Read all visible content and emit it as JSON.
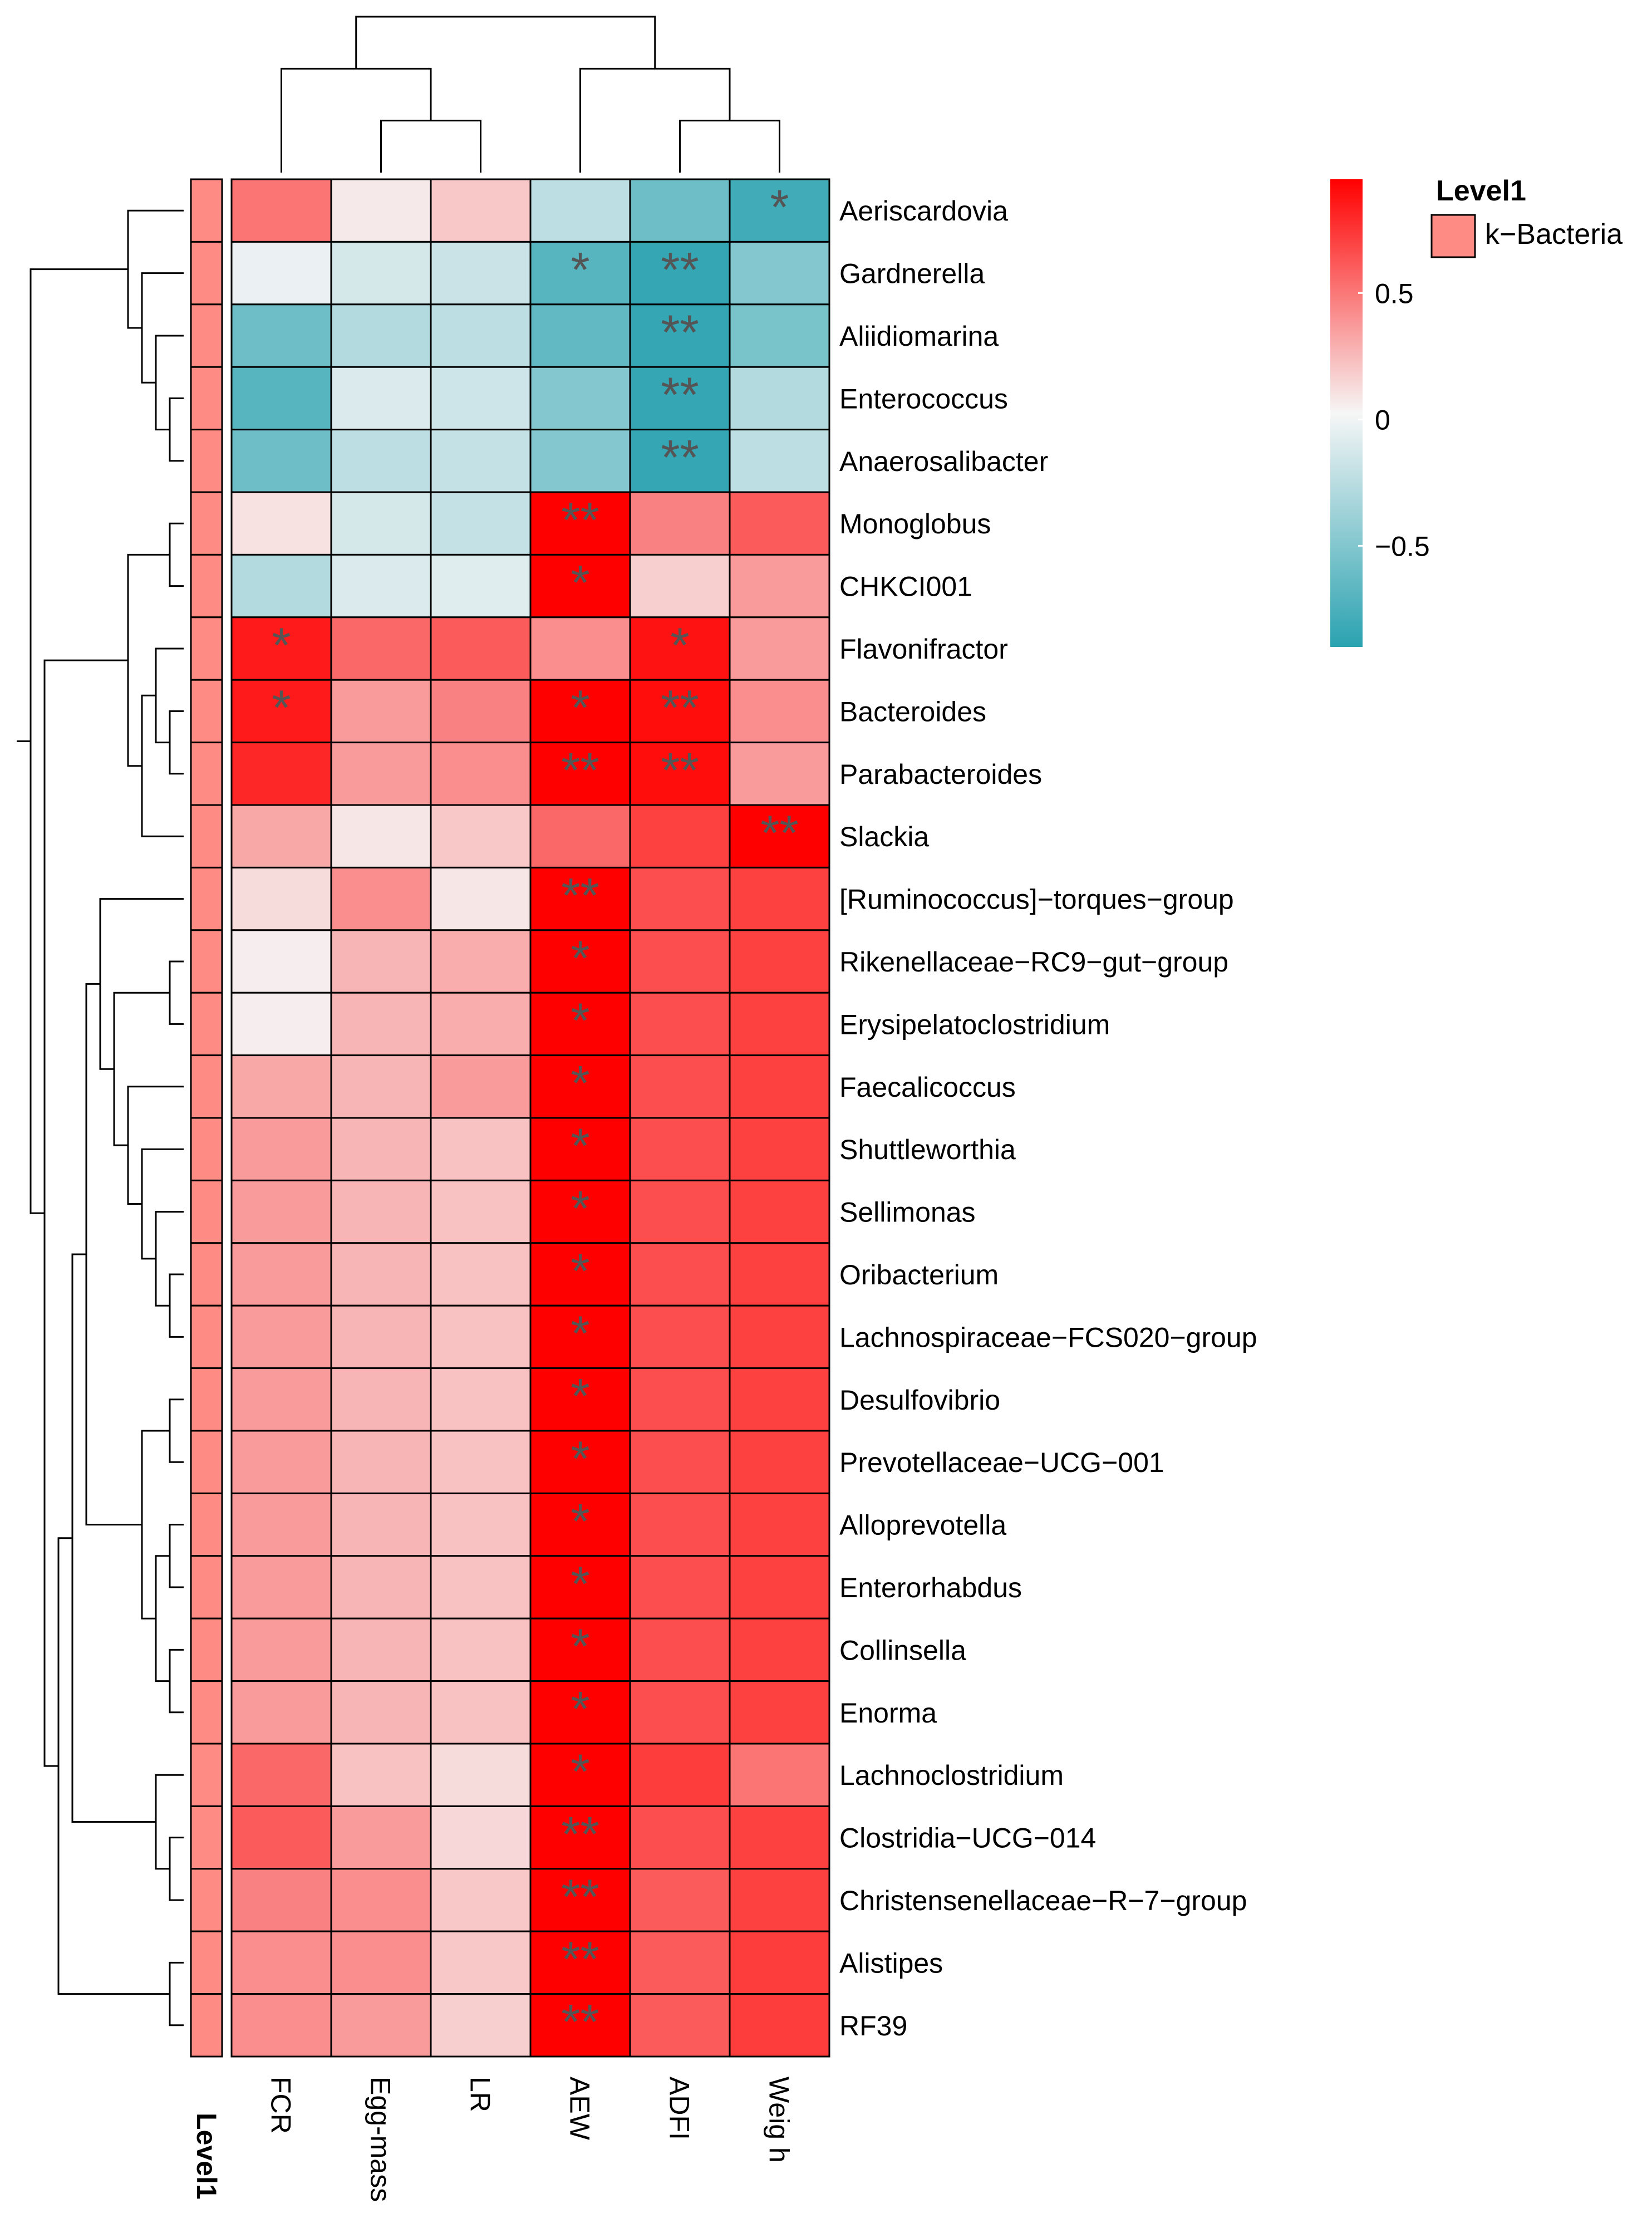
{
  "chart_data": {
    "type": "heatmap",
    "title": "",
    "columns": [
      "FCR",
      "Egg-mass",
      "LR",
      "AEW",
      "ADFI",
      "Weig h"
    ],
    "rows": [
      "Aeriscardovia",
      "Gardnerella",
      "Aliidiomarina",
      "Enterococcus",
      "Anaerosalibacter",
      "Monoglobus",
      "CHKCI001",
      "Flavonifractor",
      "Bacteroides",
      "Parabacteroides",
      "Slackia",
      "[Ruminococcus]−torques−group",
      "Rikenellaceae−RC9−gut−group",
      "Erysipelatoclostridium",
      "Faecalicoccus",
      "Shuttleworthia",
      "Sellimonas",
      "Oribacterium",
      "Lachnospiraceae−FCS020−group",
      "Desulfovibrio",
      "Prevotellaceae−UCG−001",
      "Alloprevotella",
      "Enterorhabdus",
      "Collinsella",
      "Enorma",
      "Lachnoclostridium",
      "Clostridia−UCG−014",
      "Christensenellaceae−R−7−group",
      "Alistipes",
      "RF39"
    ],
    "values": [
      [
        0.5,
        0.05,
        0.18,
        -0.25,
        -0.6,
        -0.8
      ],
      [
        -0.05,
        -0.15,
        -0.2,
        -0.7,
        -0.85,
        -0.5
      ],
      [
        -0.6,
        -0.3,
        -0.25,
        -0.65,
        -0.85,
        -0.55
      ],
      [
        -0.7,
        -0.12,
        -0.18,
        -0.5,
        -0.85,
        -0.3
      ],
      [
        -0.6,
        -0.25,
        -0.22,
        -0.5,
        -0.85,
        -0.25
      ],
      [
        0.08,
        -0.15,
        -0.22,
        0.95,
        0.45,
        0.6
      ],
      [
        -0.3,
        -0.12,
        -0.1,
        0.95,
        0.15,
        0.35
      ],
      [
        0.85,
        0.55,
        0.6,
        0.4,
        0.88,
        0.35
      ],
      [
        0.85,
        0.35,
        0.45,
        0.95,
        0.9,
        0.4
      ],
      [
        0.8,
        0.35,
        0.4,
        0.95,
        0.9,
        0.35
      ],
      [
        0.3,
        0.06,
        0.18,
        0.55,
        0.7,
        0.98
      ],
      [
        0.1,
        0.4,
        0.06,
        0.95,
        0.65,
        0.7
      ],
      [
        0.03,
        0.25,
        0.28,
        0.95,
        0.65,
        0.7
      ],
      [
        0.03,
        0.25,
        0.28,
        0.95,
        0.65,
        0.7
      ],
      [
        0.3,
        0.25,
        0.35,
        0.95,
        0.65,
        0.7
      ],
      [
        0.35,
        0.25,
        0.2,
        0.95,
        0.65,
        0.7
      ],
      [
        0.35,
        0.25,
        0.2,
        0.95,
        0.65,
        0.7
      ],
      [
        0.35,
        0.25,
        0.2,
        0.95,
        0.65,
        0.7
      ],
      [
        0.35,
        0.25,
        0.2,
        0.95,
        0.65,
        0.7
      ],
      [
        0.35,
        0.25,
        0.2,
        0.95,
        0.65,
        0.7
      ],
      [
        0.35,
        0.25,
        0.2,
        0.95,
        0.65,
        0.7
      ],
      [
        0.35,
        0.25,
        0.2,
        0.95,
        0.65,
        0.7
      ],
      [
        0.35,
        0.25,
        0.2,
        0.95,
        0.65,
        0.7
      ],
      [
        0.35,
        0.25,
        0.2,
        0.95,
        0.65,
        0.7
      ],
      [
        0.35,
        0.25,
        0.2,
        0.95,
        0.65,
        0.7
      ],
      [
        0.55,
        0.2,
        0.1,
        0.95,
        0.72,
        0.5
      ],
      [
        0.6,
        0.35,
        0.12,
        0.95,
        0.65,
        0.7
      ],
      [
        0.45,
        0.4,
        0.18,
        0.95,
        0.6,
        0.7
      ],
      [
        0.4,
        0.4,
        0.18,
        0.95,
        0.6,
        0.72
      ],
      [
        0.4,
        0.35,
        0.15,
        0.95,
        0.6,
        0.72
      ]
    ],
    "significance": [
      [
        "",
        "",
        "",
        "",
        "",
        "*"
      ],
      [
        "",
        "",
        "",
        "*",
        "**",
        ""
      ],
      [
        "",
        "",
        "",
        "",
        "**",
        ""
      ],
      [
        "",
        "",
        "",
        "",
        "**",
        ""
      ],
      [
        "",
        "",
        "",
        "",
        "**",
        ""
      ],
      [
        "",
        "",
        "",
        "**",
        "",
        ""
      ],
      [
        "",
        "",
        "",
        "*",
        "",
        ""
      ],
      [
        "*",
        "",
        "",
        "",
        "*",
        ""
      ],
      [
        "*",
        "",
        "",
        "*",
        "**",
        ""
      ],
      [
        "",
        "",
        "",
        "**",
        "**",
        ""
      ],
      [
        "",
        "",
        "",
        "",
        "",
        "**"
      ],
      [
        "",
        "",
        "",
        "**",
        "",
        ""
      ],
      [
        "",
        "",
        "",
        "*",
        "",
        ""
      ],
      [
        "",
        "",
        "",
        "*",
        "",
        ""
      ],
      [
        "",
        "",
        "",
        "*",
        "",
        ""
      ],
      [
        "",
        "",
        "",
        "*",
        "",
        ""
      ],
      [
        "",
        "",
        "",
        "*",
        "",
        ""
      ],
      [
        "",
        "",
        "",
        "*",
        "",
        ""
      ],
      [
        "",
        "",
        "",
        "*",
        "",
        ""
      ],
      [
        "",
        "",
        "",
        "*",
        "",
        ""
      ],
      [
        "",
        "",
        "",
        "*",
        "",
        ""
      ],
      [
        "",
        "",
        "",
        "*",
        "",
        ""
      ],
      [
        "",
        "",
        "",
        "*",
        "",
        ""
      ],
      [
        "",
        "",
        "",
        "*",
        "",
        ""
      ],
      [
        "",
        "",
        "",
        "*",
        "",
        ""
      ],
      [
        "",
        "",
        "",
        "*",
        "",
        ""
      ],
      [
        "",
        "",
        "",
        "**",
        "",
        ""
      ],
      [
        "",
        "",
        "",
        "**",
        "",
        ""
      ],
      [
        "",
        "",
        "",
        "**",
        "",
        ""
      ],
      [
        "",
        "",
        "",
        "**",
        "",
        ""
      ]
    ],
    "annotation": {
      "label": "Level1",
      "legend_title": "Level1",
      "category": "k−Bacteria",
      "color": "#ff8c84"
    },
    "color_scale": {
      "low": "#2aa2b0",
      "mid": "#f6f6f6",
      "high": "#ff0000",
      "range": [
        -0.9,
        0.95
      ],
      "ticks": [
        {
          "value": 0.5,
          "label": "0.5"
        },
        {
          "value": 0,
          "label": "0"
        },
        {
          "value": -0.5,
          "label": "−0.5"
        }
      ]
    },
    "row_tree": [
      [
        [
          0,
          [
            1,
            [
              2,
              [
                3,
                4
              ]
            ]
          ]
        ],
        [
          [
            [
              5,
              6
            ],
            [
              [
                7,
                [
                  8,
                  9
                ]
              ],
              10
            ]
          ],
          [
            [
              [
                [
                  11,
                  [
                    [
                      12,
                      13
                    ],
                    [
                      14,
                      [
                        15,
                        [
                          16,
                          [
                            17,
                            18
                          ]
                        ]
                      ]
                    ]
                  ]
                ],
                [
                  [
                    19,
                    20
                  ],
                  [
                    [
                      21,
                      22
                    ],
                    [
                      23,
                      24
                    ]
                  ]
                ]
              ],
              [
                25,
                [
                  26,
                  27
                ]
              ]
            ],
            [
              28,
              29
            ]
          ]
        ]
      ]
    ],
    "col_tree": [
      [
        0,
        [
          1,
          2
        ]
      ],
      [
        3,
        [
          4,
          5
        ]
      ]
    ]
  }
}
